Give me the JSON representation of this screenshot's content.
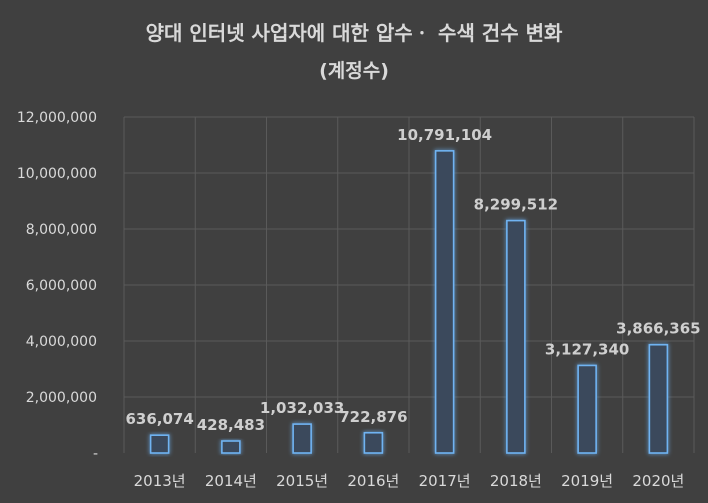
{
  "chart_data": {
    "type": "bar",
    "title": "양대 인터넷 사업자에 대한 압수ㆍ 수색 건수 변화",
    "subtitle": "(계정수)",
    "xlabel": "",
    "ylabel": "",
    "categories": [
      "2013년",
      "2014년",
      "2015년",
      "2016년",
      "2017년",
      "2018년",
      "2019년",
      "2020년"
    ],
    "values": [
      636074,
      428483,
      1032033,
      722876,
      10791104,
      8299512,
      3127340,
      3866365
    ],
    "data_labels": [
      "636,074",
      "428,483",
      "1,032,033",
      "722,876",
      "10,791,104",
      "8,299,512",
      "3,127,340",
      "3,866,365"
    ],
    "ylim": [
      0,
      12000000
    ],
    "yticks": [
      0,
      2000000,
      4000000,
      6000000,
      8000000,
      10000000,
      12000000
    ],
    "ytick_labels": [
      "-",
      "2,000,000",
      "4,000,000",
      "6,000,000",
      "8,000,000",
      "10,000,000",
      "12,000,000"
    ],
    "grid": true,
    "legend": "none",
    "colors": {
      "background": "#404040",
      "bar_fill": "#3a4a5c",
      "bar_edge": "#6fb3f2",
      "grid": "#5a5a5a",
      "text": "#d9d9d9",
      "label": "#cfcfcf"
    }
  }
}
